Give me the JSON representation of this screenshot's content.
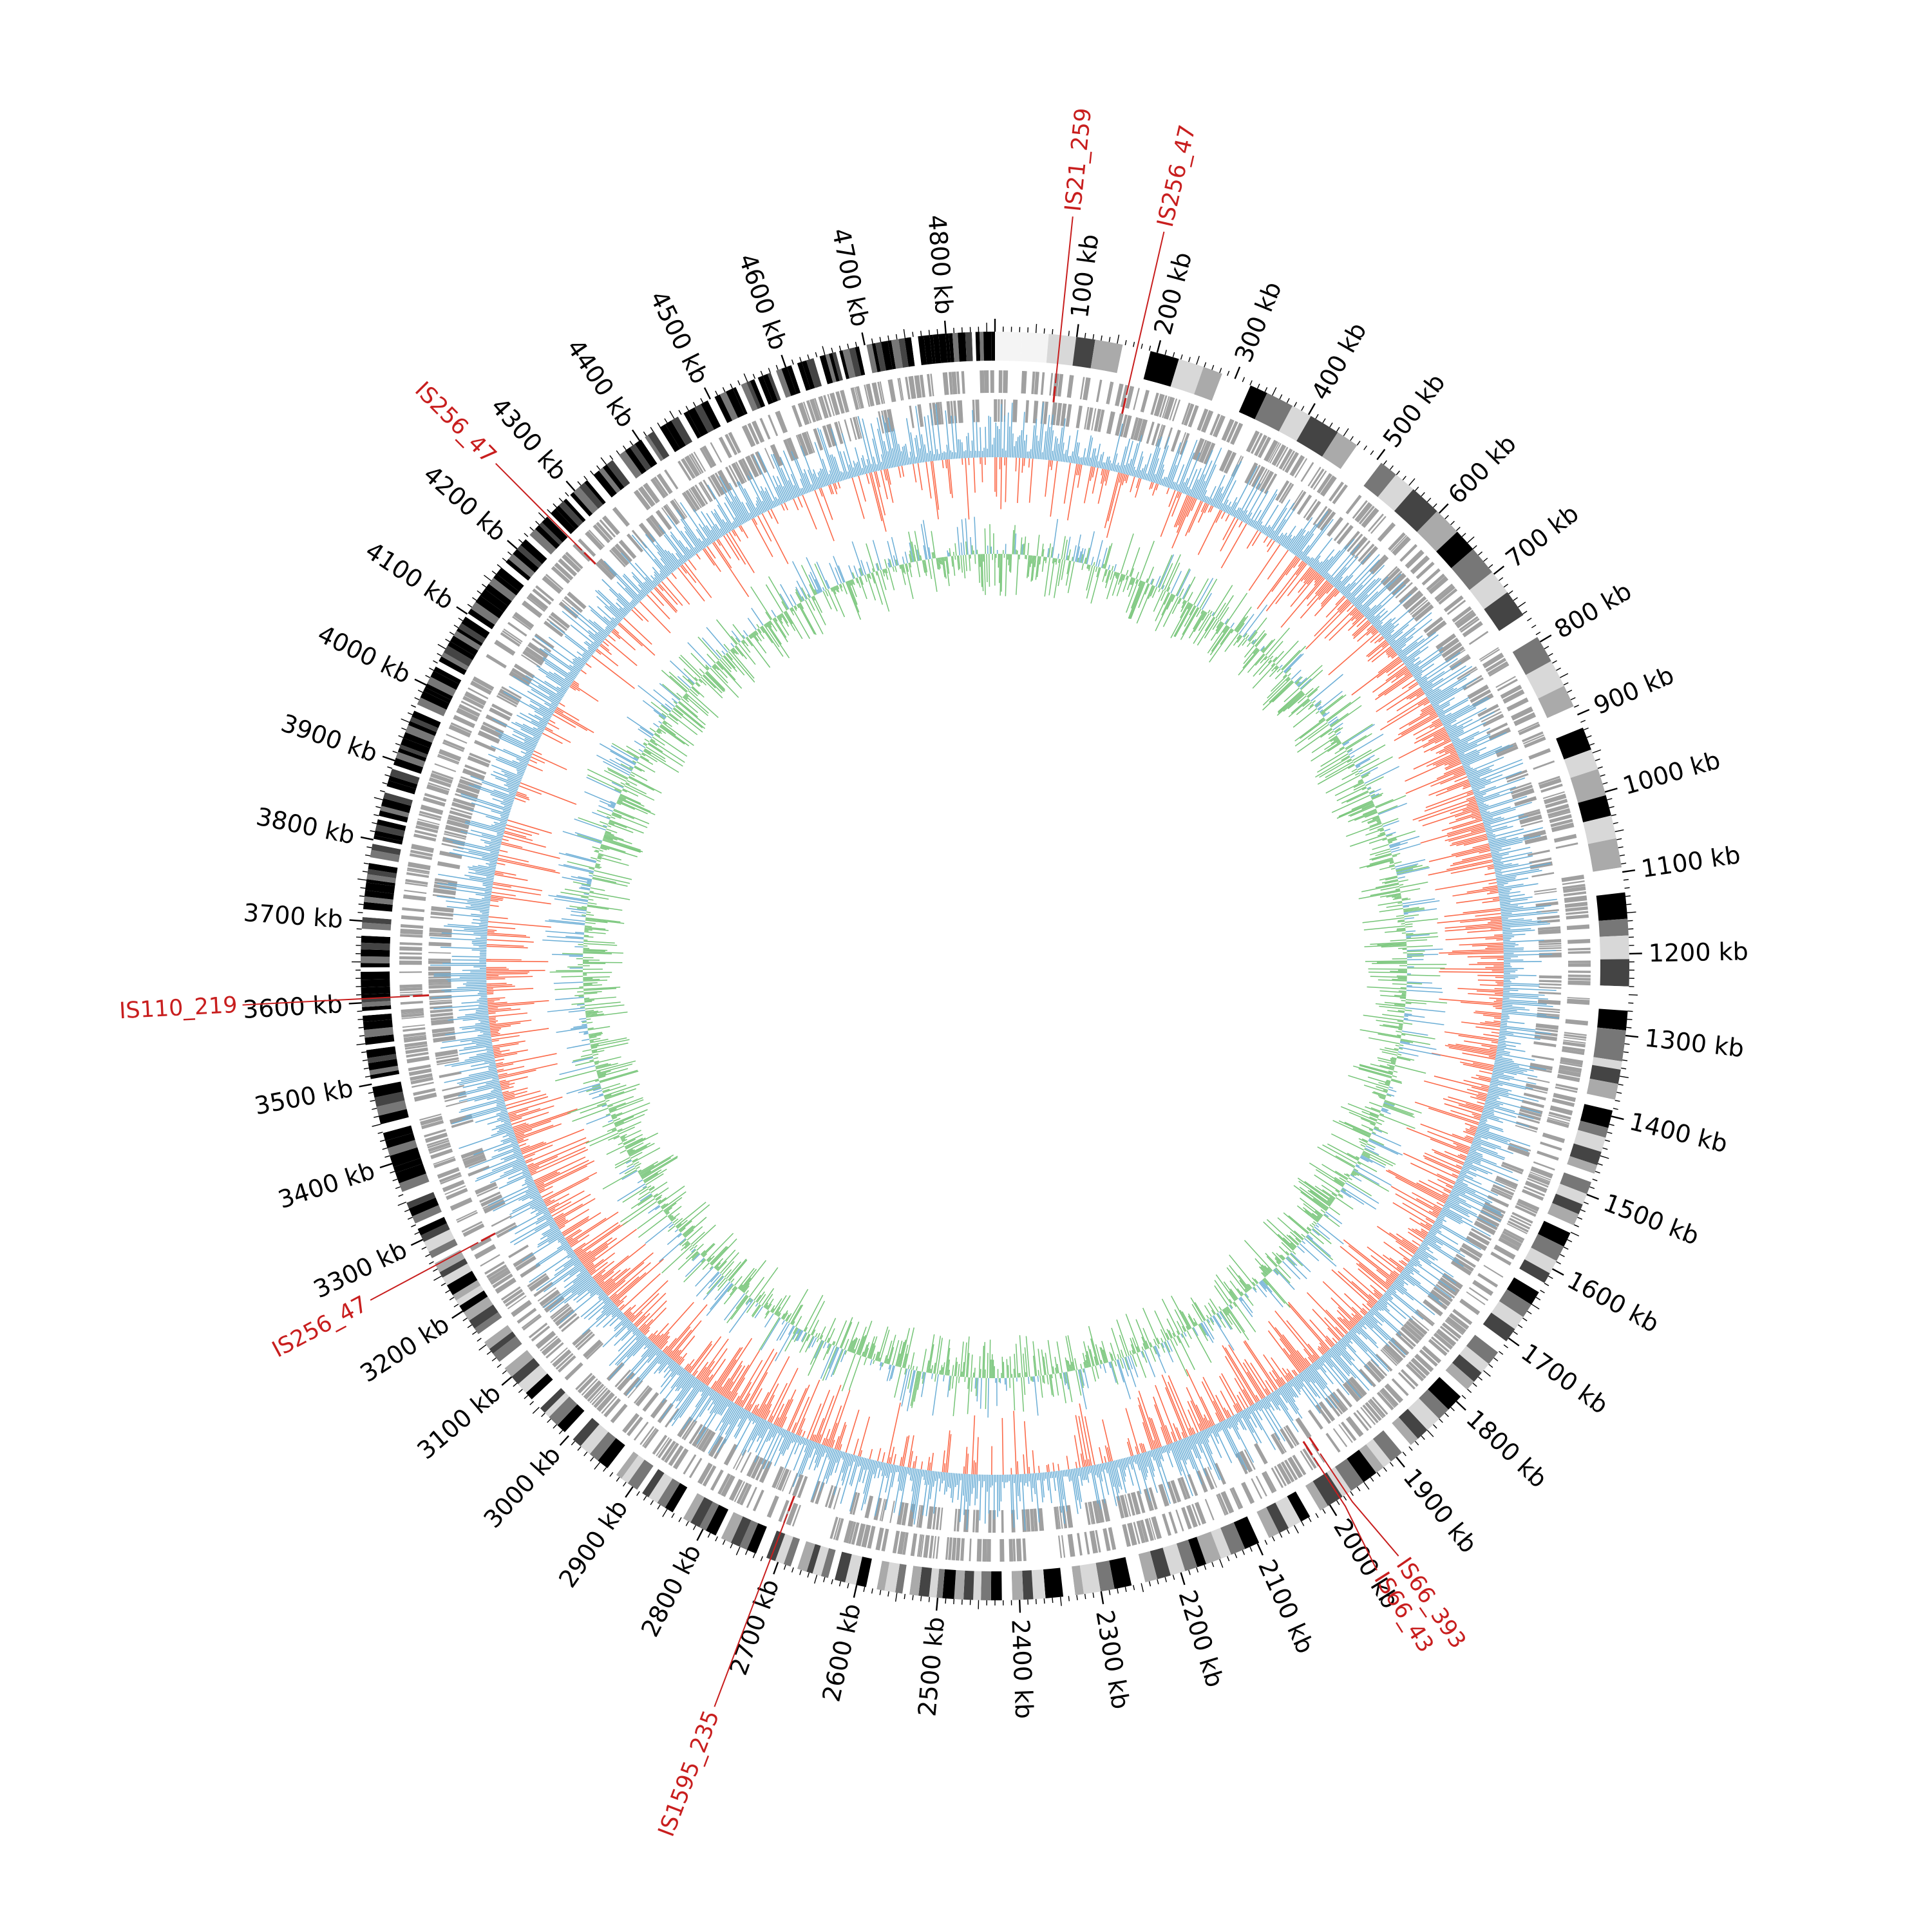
{
  "figure": {
    "genome_length_kb": 4860,
    "scale_tick_step_kb": 100,
    "scale_unit": "kb",
    "colors": {
      "background": "#ffffff",
      "karyotype_dark": "#000000",
      "karyotype_mid": "#777777",
      "karyotype_light": "#d8d8d8",
      "genes": "#a0a0a0",
      "gc_skew_up": "#6baed6",
      "gc_skew_down": "#fb6a4a",
      "gc_content": "#74c476",
      "gc_content_spike": "#6baed6",
      "inner_blocks": "#08458c",
      "is_marker": "#c81e1e",
      "tick": "#000000"
    }
  },
  "scale_ticks": [
    {
      "kb": 100,
      "label": "100 kb"
    },
    {
      "kb": 200,
      "label": "200 kb"
    },
    {
      "kb": 300,
      "label": "300 kb"
    },
    {
      "kb": 400,
      "label": "400 kb"
    },
    {
      "kb": 500,
      "label": "500 kb"
    },
    {
      "kb": 600,
      "label": "600 kb"
    },
    {
      "kb": 700,
      "label": "700 kb"
    },
    {
      "kb": 800,
      "label": "800 kb"
    },
    {
      "kb": 900,
      "label": "900 kb"
    },
    {
      "kb": 1000,
      "label": "1000 kb"
    },
    {
      "kb": 1100,
      "label": "1100 kb"
    },
    {
      "kb": 1200,
      "label": "1200 kb"
    },
    {
      "kb": 1300,
      "label": "1300 kb"
    },
    {
      "kb": 1400,
      "label": "1400 kb"
    },
    {
      "kb": 1500,
      "label": "1500 kb"
    },
    {
      "kb": 1600,
      "label": "1600 kb"
    },
    {
      "kb": 1700,
      "label": "1700 kb"
    },
    {
      "kb": 1800,
      "label": "1800 kb"
    },
    {
      "kb": 1900,
      "label": "1900 kb"
    },
    {
      "kb": 2000,
      "label": "2000 kb"
    },
    {
      "kb": 2100,
      "label": "2100 kb"
    },
    {
      "kb": 2200,
      "label": "2200 kb"
    },
    {
      "kb": 2300,
      "label": "2300 kb"
    },
    {
      "kb": 2400,
      "label": "2400 kb"
    },
    {
      "kb": 2500,
      "label": "2500 kb"
    },
    {
      "kb": 2600,
      "label": "2600 kb"
    },
    {
      "kb": 2700,
      "label": "2700 kb"
    },
    {
      "kb": 2800,
      "label": "2800 kb"
    },
    {
      "kb": 2900,
      "label": "2900 kb"
    },
    {
      "kb": 3000,
      "label": "3000 kb"
    },
    {
      "kb": 3100,
      "label": "3100 kb"
    },
    {
      "kb": 3200,
      "label": "3200 kb"
    },
    {
      "kb": 3300,
      "label": "3300 kb"
    },
    {
      "kb": 3400,
      "label": "3400 kb"
    },
    {
      "kb": 3500,
      "label": "3500 kb"
    },
    {
      "kb": 3600,
      "label": "3600 kb"
    },
    {
      "kb": 3700,
      "label": "3700 kb"
    },
    {
      "kb": 3800,
      "label": "3800 kb"
    },
    {
      "kb": 3900,
      "label": "3900 kb"
    },
    {
      "kb": 4000,
      "label": "4000 kb"
    },
    {
      "kb": 4100,
      "label": "4100 kb"
    },
    {
      "kb": 4200,
      "label": "4200 kb"
    },
    {
      "kb": 4300,
      "label": "4300 kb"
    },
    {
      "kb": 4400,
      "label": "4400 kb"
    },
    {
      "kb": 4500,
      "label": "4500 kb"
    },
    {
      "kb": 4600,
      "label": "4600 kb"
    },
    {
      "kb": 4700,
      "label": "4700 kb"
    },
    {
      "kb": 4800,
      "label": "4800 kb"
    }
  ],
  "is_elements": [
    {
      "name": "IS21_259",
      "kb": 80
    },
    {
      "name": "IS256_47",
      "kb": 175
    },
    {
      "name": "IS66_393",
      "kb": 1975
    },
    {
      "name": "IS66_43",
      "kb": 1985
    },
    {
      "name": "IS1595_235",
      "kb": 2710
    },
    {
      "name": "IS256_47",
      "kb": 3265
    },
    {
      "name": "IS110_219",
      "kb": 3605
    },
    {
      "name": "IS256_47",
      "kb": 4255
    }
  ]
}
